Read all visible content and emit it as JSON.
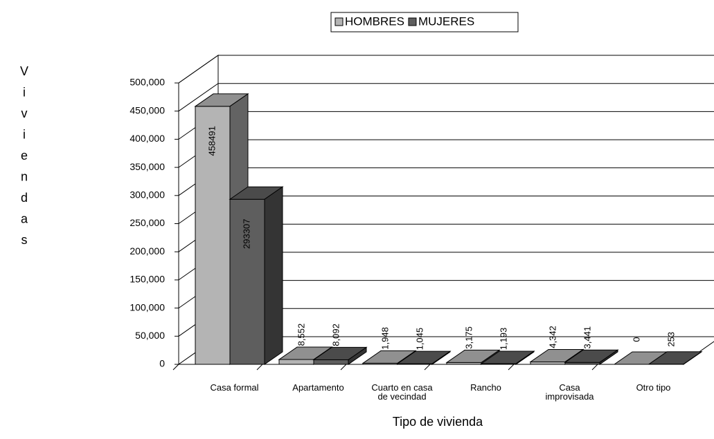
{
  "chart_data": {
    "type": "bar3d",
    "x_label": "Tipo de vivienda",
    "y_label": "Viviendas",
    "categories": [
      "Casa formal",
      "Apartamento",
      "Cuarto en casa\nde vecindad",
      "Rancho",
      "Casa\nimprovisada",
      "Otro tipo"
    ],
    "series": [
      {
        "name": "HOMBRES",
        "color": "#b4b4b4",
        "values": [
          458491,
          8552,
          1948,
          3175,
          4342,
          0
        ],
        "value_labels": [
          "458491",
          "8,552",
          "1,948",
          "3,175",
          "4,342",
          "0"
        ]
      },
      {
        "name": "MUJERES",
        "color": "#5e5e5e",
        "values": [
          293307,
          8092,
          1045,
          1193,
          3441,
          253
        ],
        "value_labels": [
          "293307",
          "8,092",
          "1,045",
          "1,193",
          "3,441",
          "253"
        ]
      }
    ],
    "ylim": [
      0,
      500000
    ],
    "yticks": [
      0,
      {
        "value": 50000,
        "label": "50,000"
      },
      {
        "value": 100000,
        "label": "100,000"
      },
      {
        "value": 150000,
        "label": "150,000"
      },
      {
        "value": 200000,
        "label": "200,000"
      },
      {
        "value": 250000,
        "label": "250,000"
      },
      {
        "value": 300000,
        "label": "300,000"
      },
      {
        "value": 350000,
        "label": "350,000"
      },
      {
        "value": 400000,
        "label": "400,000"
      },
      {
        "value": 450000,
        "label": "450,000"
      },
      {
        "value": 500000,
        "label": "500,000"
      }
    ],
    "grid": true,
    "legend": "top"
  }
}
